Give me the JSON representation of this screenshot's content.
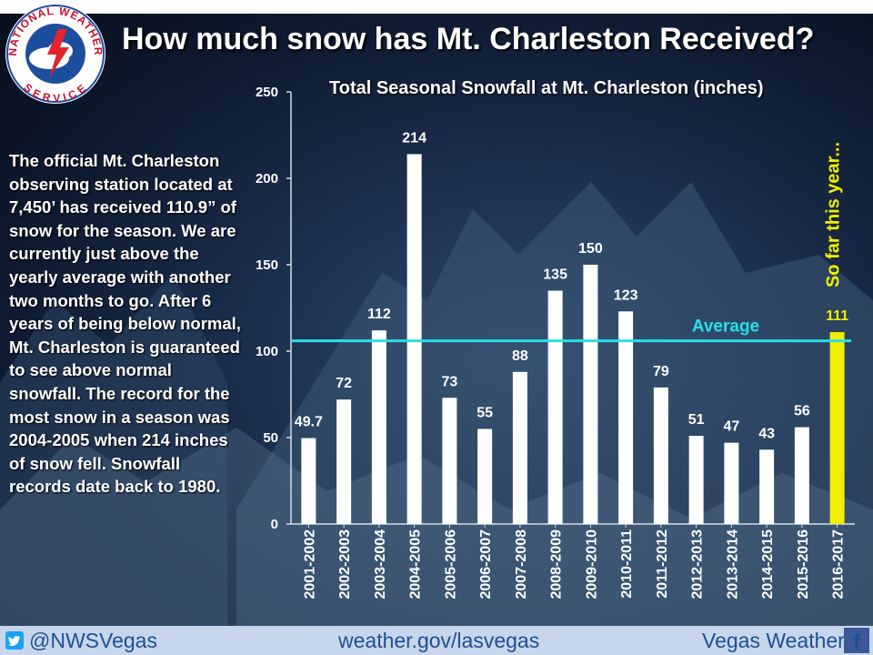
{
  "header": {
    "title": "How much snow has Mt. Charleston Received?",
    "logo_text_top": "NATIONAL WEATHER",
    "logo_text_bottom": "SERVICE"
  },
  "sidebar": {
    "text": "The official Mt. Charleston observing station located at 7,450’ has received 110.9” of snow for the season. We are currently just above the yearly average with another two months to go. After 6 years of being below normal, Mt. Charleston is guaranteed to see above normal snowfall. The record for the most snow in a season was 2004-2005 when 214 inches of snow fell. Snowfall records date back to 1980."
  },
  "chart_data": {
    "type": "bar",
    "title": "Total Seasonal Snowfall at Mt. Charleston (inches)",
    "xlabel": "",
    "ylabel": "",
    "ylim": [
      0,
      250
    ],
    "yticks": [
      0,
      50,
      100,
      150,
      200,
      250
    ],
    "categories": [
      "2001-2002",
      "2002-2003",
      "2003-2004",
      "2004-2005",
      "2005-2006",
      "2006-2007",
      "2007-2008",
      "2008-2009",
      "2009-2010",
      "2010-2011",
      "2011-2012",
      "2012-2013",
      "2013-2014",
      "2014-2015",
      "2015-2016",
      "2016-2017"
    ],
    "values": [
      49.7,
      72,
      112,
      214,
      73,
      55,
      88,
      135,
      150,
      123,
      79,
      51,
      47,
      43,
      56,
      111
    ],
    "labels": [
      "49.7",
      "72",
      "112",
      "214",
      "73",
      "55",
      "88",
      "135",
      "150",
      "123",
      "79",
      "51",
      "47",
      "43",
      "56",
      "111"
    ],
    "highlight_index": 15,
    "average": {
      "value": 106,
      "label": "Average"
    },
    "annotation": "So far this year...",
    "colors": {
      "bar": "#ffffff",
      "highlight": "#f2ee00",
      "average": "#27e0e6",
      "annotation": "#f2ee00"
    }
  },
  "footer": {
    "twitter": "@NWSVegas",
    "website": "weather.gov/lasvegas",
    "facebook": "Vegas Weather",
    "facebook_icon": "f"
  }
}
